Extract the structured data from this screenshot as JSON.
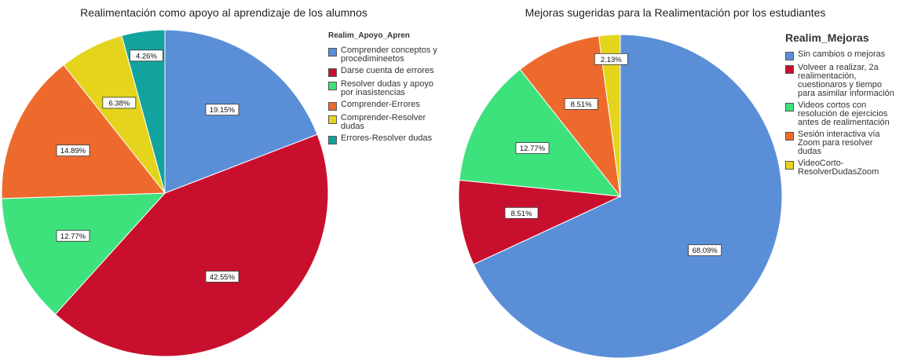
{
  "chart_data": [
    {
      "type": "pie",
      "title": "Realimentación como apoyo al aprendizaje de los alumnos",
      "legend_title": "Realim_Apoyo_Apren",
      "categories": [
        "Comprender conceptos y procedimineetos",
        "Darse cuenta de errores",
        "Resolver dudas y apoyo por inasistencias",
        "Comprender-Errores",
        "Comprender-Resolver dudas",
        "Errores-Resolver dudas"
      ],
      "values": [
        19.15,
        42.55,
        12.77,
        14.89,
        6.38,
        4.26
      ],
      "value_labels": [
        "19.15%",
        "42.55%",
        "12.77%",
        "14.89%",
        "6.38%",
        "4.26%"
      ],
      "colors": [
        "#5a8fd8",
        "#c8102e",
        "#3ee27c",
        "#ee6a2c",
        "#e4d41c",
        "#13a39f"
      ],
      "legend": "right"
    },
    {
      "type": "pie",
      "title": "Mejoras sugeridas para la Realimentación por los estudiantes",
      "legend_title": "Realim_Mejoras",
      "categories": [
        "Sin cambios o mejoras",
        "Volveer a realizar, 2a realimentación, cuestionaros y tiempo para asimilar información",
        "Videos cortos con resolución de ejercicios antes de realimentación",
        "Sesión interactiva vía Zoom para resolver dudas",
        "VideoCorto-ResolverDudasZoom"
      ],
      "values": [
        68.09,
        8.51,
        12.77,
        8.51,
        2.13
      ],
      "value_labels": [
        "68.09%",
        "8.51%",
        "12.77%",
        "8.51%",
        "2.13%"
      ],
      "colors": [
        "#5a8fd8",
        "#c8102e",
        "#3ee27c",
        "#ee6a2c",
        "#e4d41c"
      ],
      "legend": "right"
    }
  ]
}
